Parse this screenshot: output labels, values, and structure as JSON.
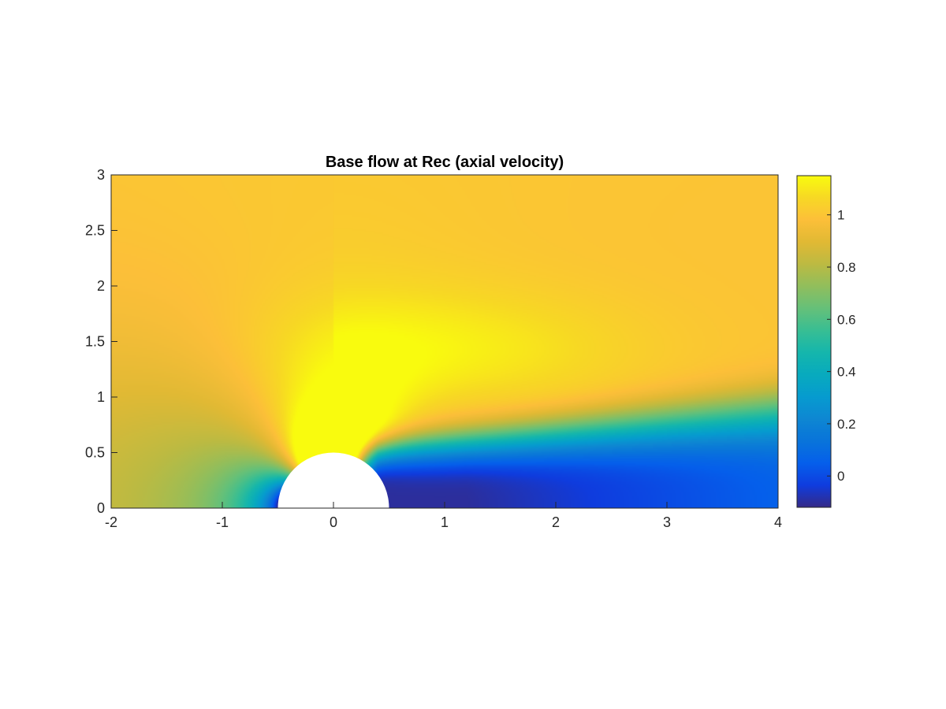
{
  "chart_data": {
    "type": "heatmap",
    "title": "Base flow at Rec (axial velocity)",
    "xlabel": "",
    "ylabel": "",
    "xlim": [
      -2,
      4
    ],
    "ylim": [
      0,
      3
    ],
    "x_ticks": [
      -2,
      -1,
      0,
      1,
      2,
      3,
      4
    ],
    "x_tick_labels": [
      "-2",
      "-1",
      "0",
      "1",
      "2",
      "3",
      "4"
    ],
    "y_ticks": [
      0,
      0.5,
      1,
      1.5,
      2,
      2.5,
      3
    ],
    "y_tick_labels": [
      "0",
      "0.5",
      "1",
      "1.5",
      "2",
      "2.5",
      "3"
    ],
    "colorbar": {
      "location": "right",
      "limits": [
        -0.12,
        1.15
      ],
      "ticks": [
        0,
        0.2,
        0.4,
        0.6,
        0.8,
        1
      ],
      "tick_labels": [
        "0",
        "0.2",
        "0.4",
        "0.6",
        "0.8",
        "1"
      ],
      "colormap": "parula"
    },
    "obstacle": {
      "shape": "half-circle",
      "center": [
        0,
        0
      ],
      "radius": 0.5,
      "color": "#ffffff"
    },
    "field_features": {
      "freestream_value": 1.0,
      "max_value": 1.15,
      "max_location": [
        1.1,
        1.35
      ],
      "min_value": -0.12,
      "min_location": [
        1.3,
        0.07
      ],
      "stagnation_point": [
        -0.5,
        0
      ]
    },
    "grid": false,
    "colors": {
      "obstacle": "#ffffff",
      "axes": "#262626"
    }
  }
}
